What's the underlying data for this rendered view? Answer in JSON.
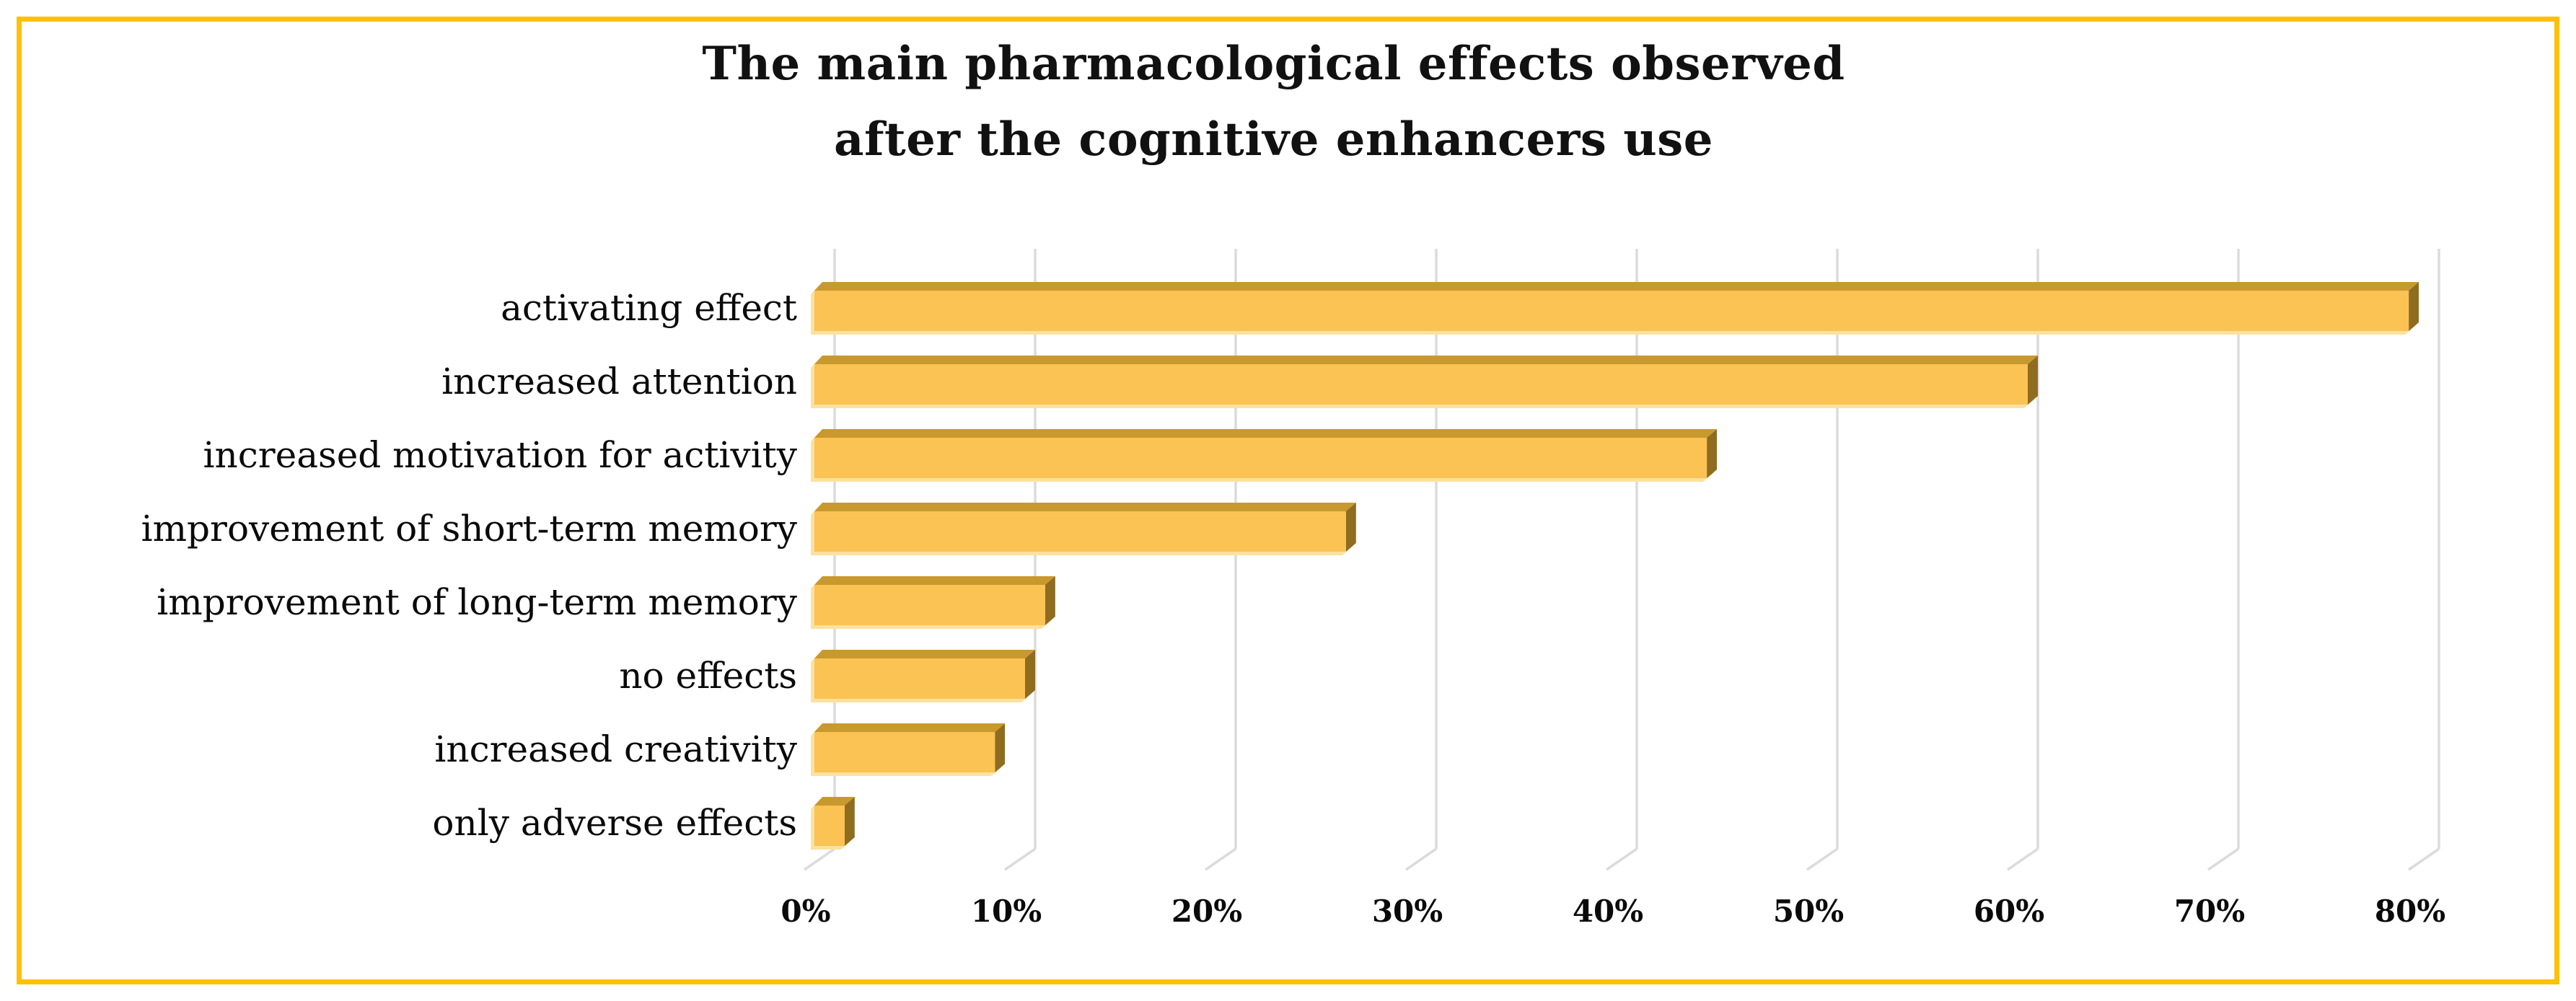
{
  "figure": {
    "title_line1": "The main pharmacological effects observed",
    "title_line2": "after the cognitive enhancers use",
    "border_color": "#FFC008"
  },
  "chart_data": {
    "type": "bar",
    "orientation": "horizontal",
    "style": "3d",
    "title": "The main pharmacological effects observed after the cognitive enhancers use",
    "categories": [
      "activating effect",
      "increased attention",
      "increased motivation for activity",
      "improvement of short-term memory",
      "improvement of long-term memory",
      "no effects",
      "increased creativity",
      "only adverse effects"
    ],
    "values": [
      79,
      60,
      44,
      26,
      11,
      10,
      8.5,
      1
    ],
    "unit": "%",
    "xlabel": "",
    "ylabel": "",
    "x_axis": {
      "min": 0,
      "max": 80,
      "step": 10,
      "tick_labels": [
        "0%",
        "10%",
        "20%",
        "30%",
        "40%",
        "50%",
        "60%",
        "70%",
        "80%"
      ]
    },
    "grid": true,
    "legend": false,
    "colors": {
      "bar_face": "#FBC254",
      "bar_top_bevel": "#C8992E",
      "bar_end_cap": "#8E6C20",
      "bar_halo": "#FCE1A0",
      "gridline": "#DBDBDB",
      "frame_border": "#FFC008"
    }
  }
}
